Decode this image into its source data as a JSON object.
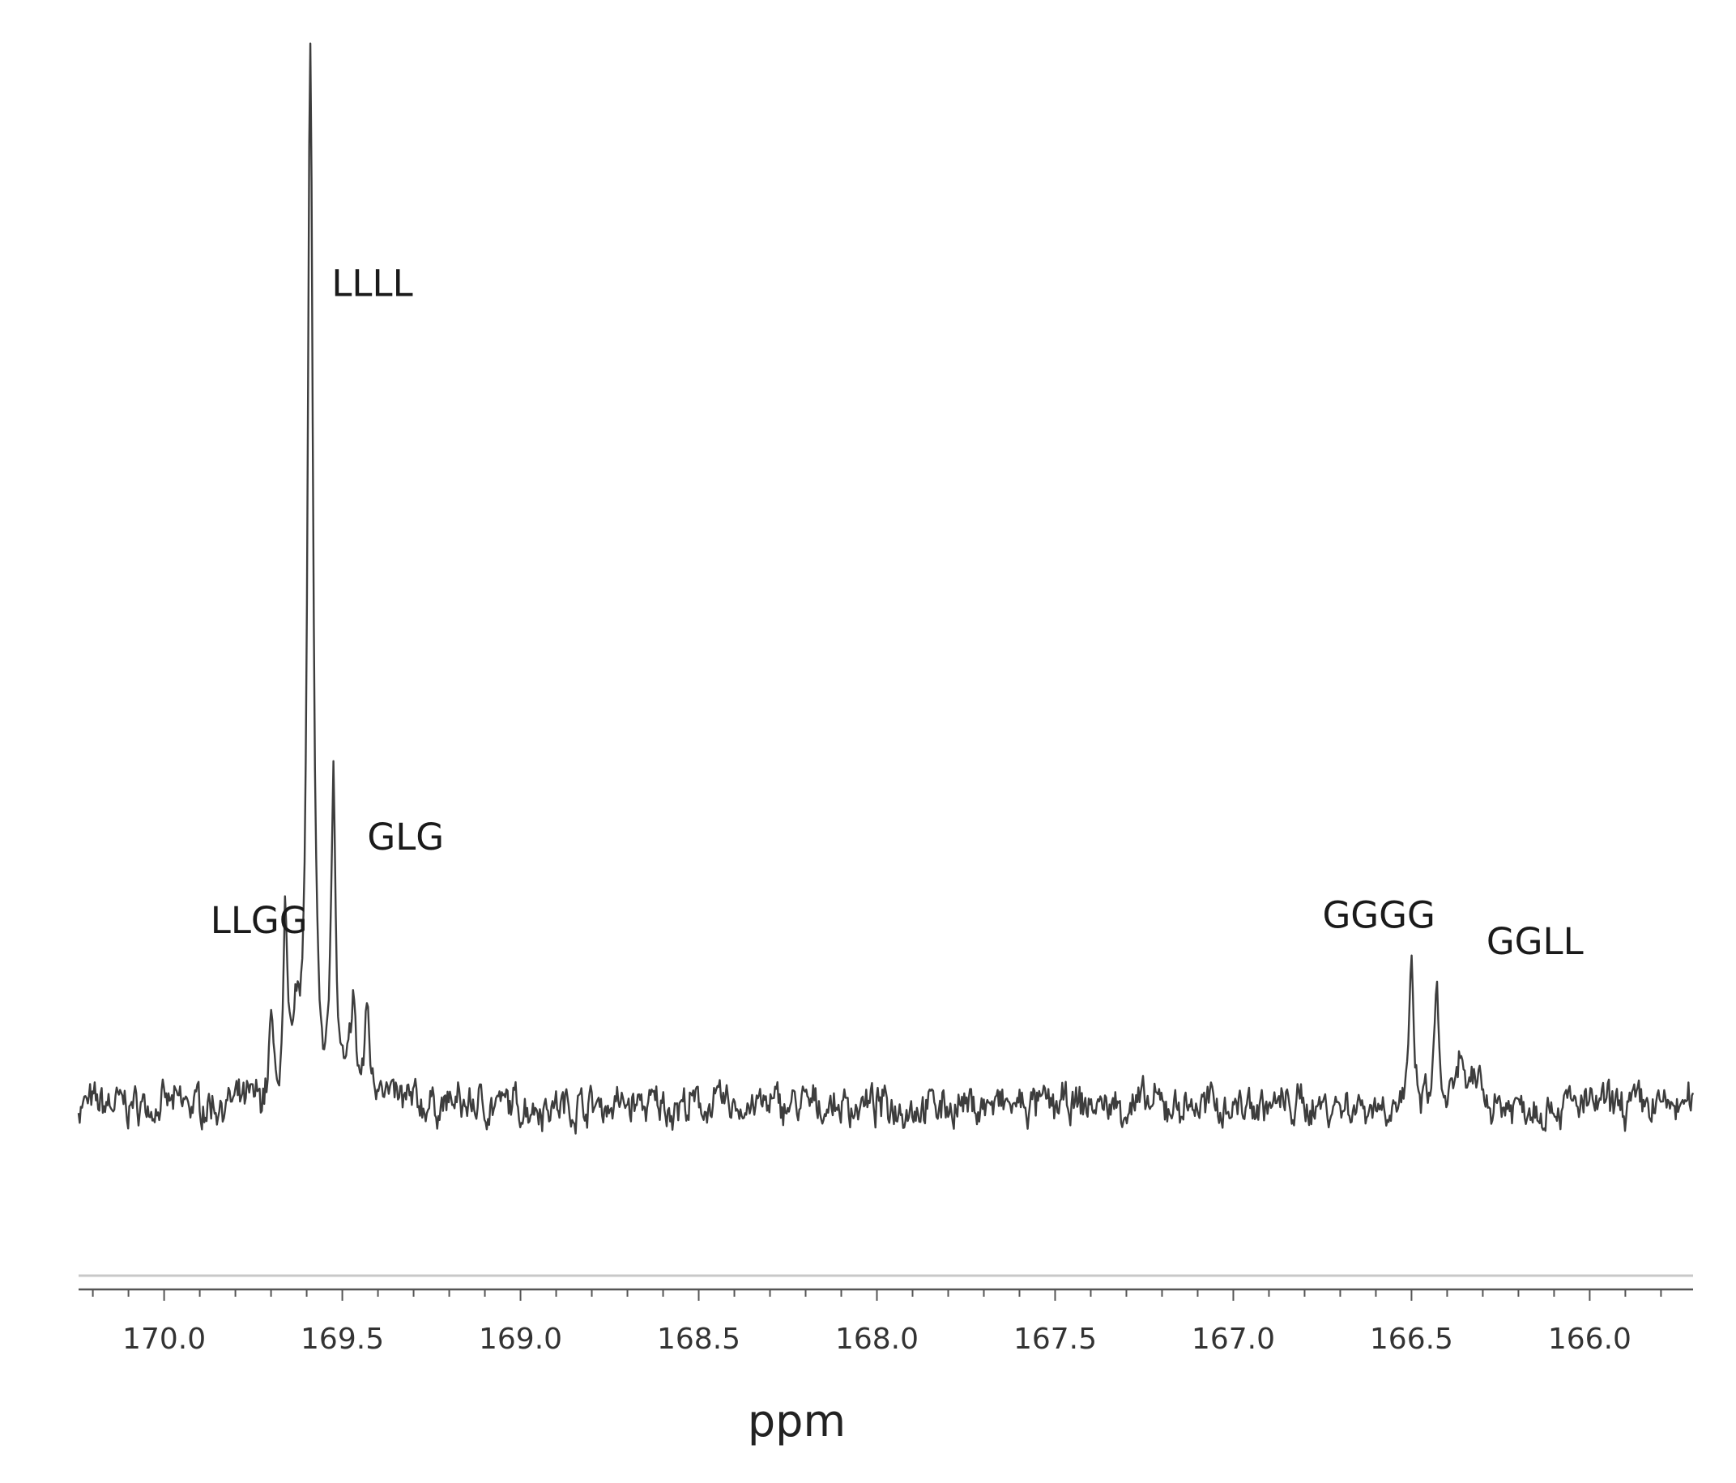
{
  "chart_data": {
    "type": "line",
    "title": "",
    "xlabel": "ppm",
    "ylabel": "",
    "x_reversed": true,
    "xlim": [
      170.24,
      165.71
    ],
    "ylim": [
      -0.03,
      1.0
    ],
    "grid": false,
    "xticks": [
      170.0,
      169.5,
      169.0,
      168.5,
      168.0,
      167.5,
      167.0,
      166.5,
      166.0
    ],
    "xtick_labels": [
      "170.0",
      "169.5",
      "169.0",
      "168.5",
      "168.0",
      "167.5",
      "167.0",
      "166.5",
      "166.0"
    ],
    "series": [
      {
        "peaks": [
          {
            "x": 169.66,
            "y": 0.165,
            "width": 0.006
          },
          {
            "x": 169.7,
            "y": 0.075,
            "width": 0.006
          },
          {
            "x": 169.63,
            "y": 0.06,
            "width": 0.006
          },
          {
            "x": 169.59,
            "y": 1.0,
            "width": 0.009
          },
          {
            "x": 169.525,
            "y": 0.3,
            "width": 0.007
          },
          {
            "x": 169.47,
            "y": 0.095,
            "width": 0.008
          },
          {
            "x": 169.43,
            "y": 0.085,
            "width": 0.008
          },
          {
            "x": 169.39,
            "y": 0.03,
            "width": 0.01
          },
          {
            "x": 166.5,
            "y": 0.135,
            "width": 0.006
          },
          {
            "x": 166.43,
            "y": 0.12,
            "width": 0.006
          },
          {
            "x": 166.36,
            "y": 0.05,
            "width": 0.009
          },
          {
            "x": 166.31,
            "y": 0.03,
            "width": 0.01
          }
        ],
        "noise_amplitude": 0.016
      }
    ],
    "annotations": [
      {
        "text": "LLLL",
        "x": 169.53,
        "y": 0.775
      },
      {
        "text": "GLG",
        "x": 169.43,
        "y": 0.245
      },
      {
        "text": "LLGG",
        "x": 169.87,
        "y": 0.165
      },
      {
        "text": "GGGG",
        "x": 166.75,
        "y": 0.17
      },
      {
        "text": "GGLL",
        "x": 166.29,
        "y": 0.145
      }
    ]
  }
}
